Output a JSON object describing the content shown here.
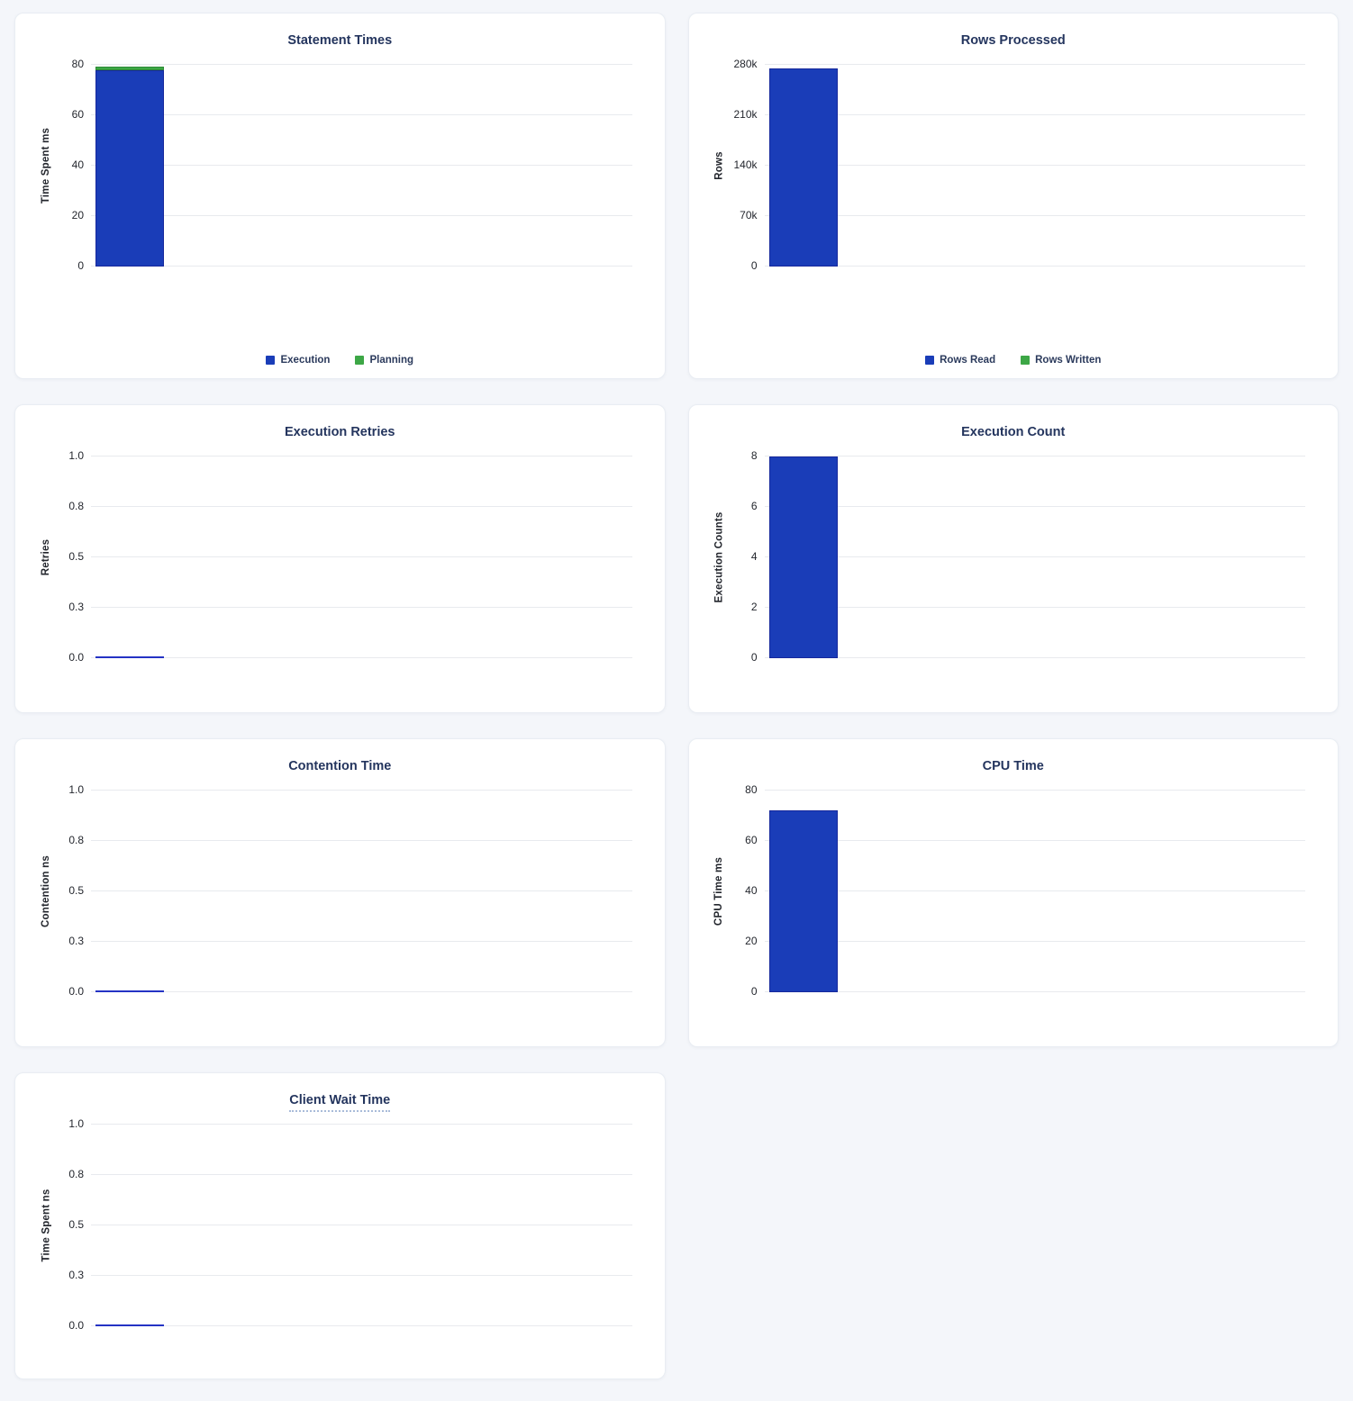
{
  "page_background": "#f4f6fa",
  "colors": {
    "bar_blue": "#1a3db8",
    "bar_blue_edge": "#16289c",
    "bar_green": "#3da746",
    "bar_green_edge": "#2d8a36",
    "zero_value_line": "#2433c4",
    "title_text": "#24355e",
    "tick_text": "#23262d",
    "gridline": "#e8eaee"
  },
  "chart_data": [
    {
      "type": "bar",
      "title": "Statement Times",
      "ylabel": "Time Spent ms",
      "ylim": [
        0,
        80
      ],
      "yticks": [
        "80",
        "60",
        "40",
        "20",
        "0"
      ],
      "categories": [
        ""
      ],
      "grid": true,
      "title_underline": false,
      "series": [
        {
          "name": "Execution",
          "color": "#1a3db8",
          "edge": "#16289c",
          "values": [
            78
          ]
        },
        {
          "name": "Planning",
          "color": "#3da746",
          "edge": "#2d8a36",
          "values": [
            1.3
          ]
        }
      ],
      "legend": {
        "position": "bottom",
        "items": [
          {
            "label": "Execution",
            "color": "#1a3db8"
          },
          {
            "label": "Planning",
            "color": "#3da746"
          }
        ]
      }
    },
    {
      "type": "bar",
      "title": "Rows Processed",
      "ylabel": "Rows",
      "ylim": [
        0,
        280000
      ],
      "yticks": [
        "280k",
        "210k",
        "140k",
        "70k",
        "0"
      ],
      "categories": [
        ""
      ],
      "grid": true,
      "title_underline": false,
      "series": [
        {
          "name": "Rows Read",
          "color": "#1a3db8",
          "edge": "#16289c",
          "values": [
            275000
          ]
        },
        {
          "name": "Rows Written",
          "color": "#3da746",
          "edge": "#2d8a36",
          "values": [
            0
          ]
        }
      ],
      "legend": {
        "position": "bottom",
        "items": [
          {
            "label": "Rows Read",
            "color": "#1a3db8"
          },
          {
            "label": "Rows Written",
            "color": "#3da746"
          }
        ]
      }
    },
    {
      "type": "bar",
      "title": "Execution Retries",
      "ylabel": "Retries",
      "ylim": [
        0,
        1
      ],
      "yticks": [
        "1.0",
        "0.8",
        "0.5",
        "0.3",
        "0.0"
      ],
      "categories": [
        ""
      ],
      "grid": true,
      "title_underline": false,
      "series": [
        {
          "name": "Retries",
          "color": "#1a3db8",
          "edge": "#16289c",
          "values": [
            0
          ]
        }
      ],
      "legend": null
    },
    {
      "type": "bar",
      "title": "Execution Count",
      "ylabel": "Execution Counts",
      "ylim": [
        0,
        8
      ],
      "yticks": [
        "8",
        "6",
        "4",
        "2",
        "0"
      ],
      "categories": [
        ""
      ],
      "grid": true,
      "title_underline": false,
      "series": [
        {
          "name": "Execution Count",
          "color": "#1a3db8",
          "edge": "#16289c",
          "values": [
            8
          ]
        }
      ],
      "legend": null
    },
    {
      "type": "bar",
      "title": "Contention Time",
      "ylabel": "Contention ns",
      "ylim": [
        0,
        1
      ],
      "yticks": [
        "1.0",
        "0.8",
        "0.5",
        "0.3",
        "0.0"
      ],
      "categories": [
        ""
      ],
      "grid": true,
      "title_underline": false,
      "series": [
        {
          "name": "Contention",
          "color": "#1a3db8",
          "edge": "#16289c",
          "values": [
            0
          ]
        }
      ],
      "legend": null
    },
    {
      "type": "bar",
      "title": "CPU Time",
      "ylabel": "CPU Time ms",
      "ylim": [
        0,
        80
      ],
      "yticks": [
        "80",
        "60",
        "40",
        "20",
        "0"
      ],
      "categories": [
        ""
      ],
      "grid": true,
      "title_underline": false,
      "series": [
        {
          "name": "CPU Time",
          "color": "#1a3db8",
          "edge": "#16289c",
          "values": [
            72
          ]
        }
      ],
      "legend": null
    },
    {
      "type": "bar",
      "title": "Client Wait Time",
      "ylabel": "Time Spent ns",
      "ylim": [
        0,
        1
      ],
      "yticks": [
        "1.0",
        "0.8",
        "0.5",
        "0.3",
        "0.0"
      ],
      "categories": [
        ""
      ],
      "grid": true,
      "title_underline": true,
      "series": [
        {
          "name": "Client Wait",
          "color": "#1a3db8",
          "edge": "#16289c",
          "values": [
            0
          ]
        }
      ],
      "legend": null
    }
  ]
}
